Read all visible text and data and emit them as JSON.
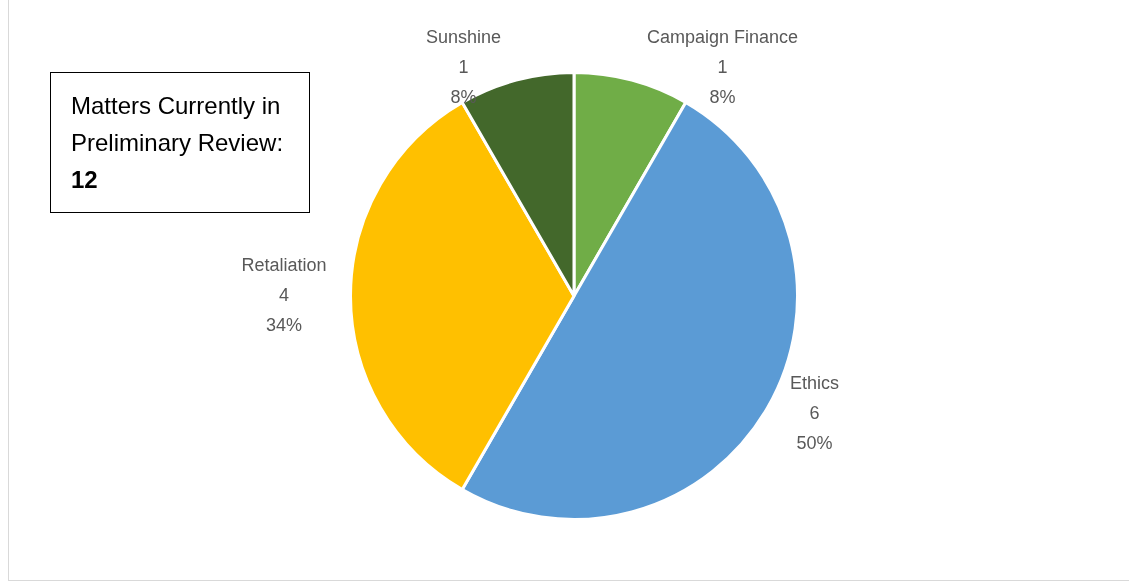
{
  "chart_data": {
    "type": "pie",
    "title": "Matters Currently in Preliminary Review: 12",
    "categories": [
      "Campaign Finance",
      "Ethics",
      "Retaliation",
      "Sunshine"
    ],
    "values": [
      1,
      6,
      4,
      1
    ],
    "colors": [
      "#70ad47",
      "#5b9bd5",
      "#ffc000",
      "#43682b"
    ],
    "value_labels": [
      "1\n8%",
      "6\n50%",
      "4\n34%",
      "1\n8%"
    ]
  }
}
